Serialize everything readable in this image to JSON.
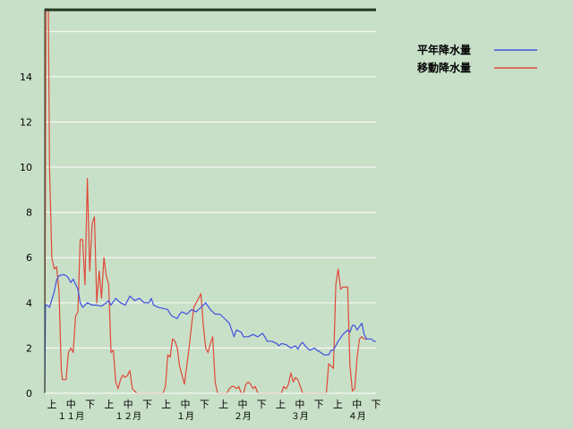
{
  "chart_data": {
    "type": "line",
    "title": "",
    "xlabel": "",
    "ylabel": "",
    "ylim": [
      0,
      17
    ],
    "y_ticks": [
      0,
      2,
      4,
      6,
      8,
      10,
      12,
      14
    ],
    "grid": true,
    "legend_position": "top-right",
    "colors": {
      "background": "#c8e0c8",
      "grid": "#ffffff",
      "heavy_line": "#203820"
    },
    "x_ticks": [
      "上",
      "中",
      "下",
      "上",
      "中",
      "下",
      "上",
      "中",
      "下",
      "上",
      "中",
      "下",
      "上",
      "中",
      "下",
      "上",
      "中",
      "下"
    ],
    "months": [
      "１１月",
      "１２月",
      "１月",
      "２月",
      "３月",
      "４月"
    ],
    "series": [
      {
        "name": "平年降水量",
        "color": "#4050e0",
        "points": [
          [
            0,
            0
          ],
          [
            0.3,
            3.9
          ],
          [
            1,
            3.9
          ],
          [
            2,
            3.8
          ],
          [
            4,
            4.5
          ],
          [
            5,
            5.0
          ],
          [
            6,
            5.2
          ],
          [
            8,
            5.25
          ],
          [
            9,
            5.2
          ],
          [
            10,
            5.1
          ],
          [
            11,
            4.9
          ],
          [
            12,
            5.05
          ],
          [
            14,
            4.6
          ],
          [
            15,
            4.0
          ],
          [
            16,
            3.8
          ],
          [
            18,
            4.0
          ],
          [
            20,
            3.9
          ],
          [
            22,
            3.9
          ],
          [
            24,
            3.85
          ],
          [
            26,
            4.0
          ],
          [
            27,
            4.1
          ],
          [
            28,
            3.9
          ],
          [
            30,
            4.2
          ],
          [
            31,
            4.1
          ],
          [
            32,
            4.0
          ],
          [
            34,
            3.9
          ],
          [
            35,
            4.1
          ],
          [
            36,
            4.3
          ],
          [
            38,
            4.1
          ],
          [
            40,
            4.2
          ],
          [
            42,
            4.0
          ],
          [
            44,
            4.0
          ],
          [
            45,
            4.2
          ],
          [
            46,
            3.9
          ],
          [
            48,
            3.8
          ],
          [
            50,
            3.75
          ],
          [
            52,
            3.7
          ],
          [
            53,
            3.5
          ],
          [
            54,
            3.4
          ],
          [
            56,
            3.3
          ],
          [
            57,
            3.5
          ],
          [
            58,
            3.6
          ],
          [
            60,
            3.5
          ],
          [
            62,
            3.7
          ],
          [
            64,
            3.6
          ],
          [
            66,
            3.8
          ],
          [
            68,
            4.0
          ],
          [
            70,
            3.7
          ],
          [
            72,
            3.5
          ],
          [
            74,
            3.5
          ],
          [
            76,
            3.3
          ],
          [
            78,
            3.1
          ],
          [
            79,
            2.8
          ],
          [
            80,
            2.5
          ],
          [
            81,
            2.8
          ],
          [
            83,
            2.7
          ],
          [
            84,
            2.5
          ],
          [
            86,
            2.5
          ],
          [
            88,
            2.6
          ],
          [
            90,
            2.5
          ],
          [
            92,
            2.65
          ],
          [
            93,
            2.5
          ],
          [
            94,
            2.3
          ],
          [
            96,
            2.3
          ],
          [
            98,
            2.2
          ],
          [
            99,
            2.1
          ],
          [
            100,
            2.2
          ],
          [
            102,
            2.15
          ],
          [
            104,
            2.0
          ],
          [
            106,
            2.1
          ],
          [
            107,
            1.95
          ],
          [
            108,
            2.15
          ],
          [
            109,
            2.25
          ],
          [
            110,
            2.1
          ],
          [
            111,
            2.0
          ],
          [
            112,
            1.9
          ],
          [
            114,
            2.0
          ],
          [
            115,
            1.9
          ],
          [
            116,
            1.85
          ],
          [
            118,
            1.7
          ],
          [
            120,
            1.7
          ],
          [
            121,
            1.9
          ],
          [
            122,
            1.9
          ],
          [
            124,
            2.3
          ],
          [
            126,
            2.6
          ],
          [
            128,
            2.8
          ],
          [
            129,
            2.7
          ],
          [
            130,
            3.0
          ],
          [
            131,
            3.0
          ],
          [
            132,
            2.8
          ],
          [
            134,
            3.1
          ],
          [
            135,
            2.6
          ],
          [
            136,
            2.4
          ],
          [
            137,
            2.4
          ],
          [
            138,
            2.4
          ],
          [
            139,
            2.3
          ],
          [
            140,
            2.3
          ]
        ]
      },
      {
        "name": "移動降水量",
        "color": "#e04838",
        "points": [
          [
            0,
            0
          ],
          [
            0.5,
            17
          ],
          [
            1.5,
            17
          ],
          [
            2,
            10
          ],
          [
            3,
            6
          ],
          [
            4,
            5.5
          ],
          [
            5,
            5.6
          ],
          [
            6,
            4.5
          ],
          [
            7,
            1.0
          ],
          [
            7.5,
            0.6
          ],
          [
            9,
            0.6
          ],
          [
            10,
            1.8
          ],
          [
            11,
            2.0
          ],
          [
            12,
            1.8
          ],
          [
            13,
            3.4
          ],
          [
            14,
            3.6
          ],
          [
            15,
            6.8
          ],
          [
            16,
            6.8
          ],
          [
            17,
            4.8
          ],
          [
            18,
            9.5
          ],
          [
            19,
            5.4
          ],
          [
            20,
            7.5
          ],
          [
            21,
            7.8
          ],
          [
            22,
            4.0
          ],
          [
            23,
            5.4
          ],
          [
            24,
            4.2
          ],
          [
            25,
            6.0
          ],
          [
            26,
            5.2
          ],
          [
            27,
            4.8
          ],
          [
            28,
            1.8
          ],
          [
            29,
            1.9
          ],
          [
            30,
            0.5
          ],
          [
            31,
            0.2
          ],
          [
            32,
            0.6
          ],
          [
            33,
            0.8
          ],
          [
            34,
            0.7
          ],
          [
            35,
            0.8
          ],
          [
            36,
            1.0
          ],
          [
            37,
            0.2
          ],
          [
            38,
            0.1
          ],
          [
            39,
            0
          ],
          [
            50,
            0
          ],
          [
            51,
            0.3
          ],
          [
            52,
            1.7
          ],
          [
            53,
            1.6
          ],
          [
            54,
            2.4
          ],
          [
            55,
            2.3
          ],
          [
            56,
            2.0
          ],
          [
            57,
            1.2
          ],
          [
            58,
            0.8
          ],
          [
            59,
            0.4
          ],
          [
            60,
            1.2
          ],
          [
            61,
            2.0
          ],
          [
            62,
            3.0
          ],
          [
            63,
            3.8
          ],
          [
            64,
            4.0
          ],
          [
            65,
            4.2
          ],
          [
            66,
            4.4
          ],
          [
            67,
            3.0
          ],
          [
            68,
            2.0
          ],
          [
            69,
            1.8
          ],
          [
            70,
            2.2
          ],
          [
            71,
            2.5
          ],
          [
            72,
            0.5
          ],
          [
            73,
            0
          ],
          [
            77,
            0
          ],
          [
            78,
            0.2
          ],
          [
            79,
            0.3
          ],
          [
            80,
            0.3
          ],
          [
            81,
            0.2
          ],
          [
            82,
            0.3
          ],
          [
            83,
            0
          ],
          [
            84,
            0
          ],
          [
            85,
            0.4
          ],
          [
            86,
            0.5
          ],
          [
            87,
            0.4
          ],
          [
            88,
            0.2
          ],
          [
            89,
            0.3
          ],
          [
            90,
            0
          ],
          [
            100,
            0
          ],
          [
            101,
            0.3
          ],
          [
            102,
            0.2
          ],
          [
            103,
            0.4
          ],
          [
            104,
            0.9
          ],
          [
            105,
            0.5
          ],
          [
            106,
            0.7
          ],
          [
            107,
            0.6
          ],
          [
            108,
            0.3
          ],
          [
            109,
            0
          ],
          [
            118,
            0
          ],
          [
            119,
            0
          ],
          [
            120,
            1.3
          ],
          [
            121,
            1.2
          ],
          [
            122,
            1.1
          ],
          [
            123,
            4.8
          ],
          [
            124,
            5.5
          ],
          [
            125,
            4.6
          ],
          [
            126,
            4.7
          ],
          [
            127,
            4.7
          ],
          [
            128,
            4.7
          ],
          [
            129,
            1.2
          ],
          [
            130,
            0.1
          ],
          [
            131,
            0.2
          ],
          [
            132,
            1.6
          ],
          [
            133,
            2.4
          ],
          [
            134,
            2.5
          ],
          [
            135,
            2.4
          ],
          [
            136,
            2.4
          ]
        ]
      }
    ]
  }
}
